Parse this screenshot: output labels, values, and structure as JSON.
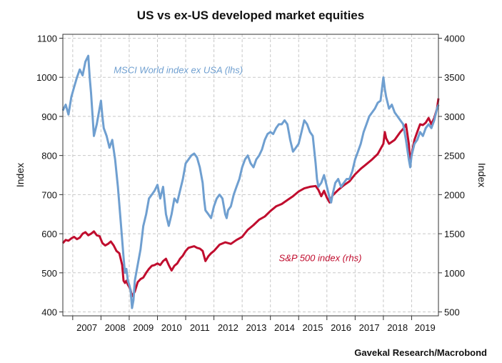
{
  "chart_data": {
    "type": "line",
    "title": "US vs ex-US developed market equities",
    "source": "Gavekal Research/Macrobond",
    "ylabel_left": "Index",
    "ylabel_right": "Index",
    "ylim_left": [
      390,
      1110
    ],
    "ylim_right": [
      450,
      4050
    ],
    "yticks_left": [
      400,
      500,
      600,
      700,
      800,
      900,
      1000,
      1100
    ],
    "yticks_right": [
      500,
      1000,
      1500,
      2000,
      2500,
      3000,
      3500,
      4000
    ],
    "year_labels": [
      "2007",
      "2008",
      "2009",
      "2010",
      "2011",
      "2012",
      "2013",
      "2014",
      "2015",
      "2016",
      "2017",
      "2018",
      "2019"
    ],
    "xlim": [
      2006.65,
      2019.95
    ],
    "grid": true,
    "colors": {
      "msci": "#6f9fd0",
      "sp500": "#c00d2e"
    },
    "series": [
      {
        "name": "MSCI World index ex USA (lhs)",
        "axis": "left",
        "x": [
          2006.65,
          2006.75,
          2006.85,
          2006.95,
          2007.05,
          2007.15,
          2007.25,
          2007.35,
          2007.45,
          2007.55,
          2007.6,
          2007.65,
          2007.75,
          2007.85,
          2007.95,
          2008.0,
          2008.05,
          2008.1,
          2008.2,
          2008.3,
          2008.4,
          2008.5,
          2008.6,
          2008.7,
          2008.8,
          2008.85,
          2008.9,
          2008.95,
          2009.0,
          2009.05,
          2009.1,
          2009.15,
          2009.2,
          2009.3,
          2009.4,
          2009.5,
          2009.6,
          2009.7,
          2009.8,
          2009.9,
          2010.0,
          2010.1,
          2010.2,
          2010.3,
          2010.4,
          2010.5,
          2010.6,
          2010.7,
          2010.8,
          2010.9,
          2011.0,
          2011.1,
          2011.2,
          2011.3,
          2011.4,
          2011.5,
          2011.6,
          2011.65,
          2011.7,
          2011.8,
          2011.9,
          2012.0,
          2012.1,
          2012.2,
          2012.3,
          2012.4,
          2012.45,
          2012.5,
          2012.6,
          2012.7,
          2012.8,
          2012.9,
          2013.0,
          2013.1,
          2013.2,
          2013.3,
          2013.4,
          2013.5,
          2013.6,
          2013.7,
          2013.8,
          2013.9,
          2014.0,
          2014.1,
          2014.2,
          2014.3,
          2014.4,
          2014.5,
          2014.6,
          2014.7,
          2014.8,
          2014.9,
          2015.0,
          2015.1,
          2015.2,
          2015.3,
          2015.4,
          2015.5,
          2015.6,
          2015.65,
          2015.7,
          2015.8,
          2015.9,
          2016.0,
          2016.1,
          2016.15,
          2016.2,
          2016.3,
          2016.4,
          2016.5,
          2016.6,
          2016.7,
          2016.8,
          2016.9,
          2017.0,
          2017.1,
          2017.2,
          2017.3,
          2017.4,
          2017.5,
          2017.6,
          2017.7,
          2017.8,
          2017.9,
          2018.0,
          2018.05,
          2018.1,
          2018.2,
          2018.3,
          2018.4,
          2018.5,
          2018.6,
          2018.7,
          2018.8,
          2018.9,
          2018.95,
          2019.0,
          2019.1,
          2019.2,
          2019.3,
          2019.4,
          2019.5,
          2019.6,
          2019.7,
          2019.8,
          2019.9,
          2019.95
        ],
        "values": [
          915,
          930,
          905,
          950,
          975,
          1000,
          1020,
          1005,
          1040,
          1055,
          1000,
          960,
          850,
          880,
          920,
          940,
          900,
          870,
          850,
          820,
          840,
          790,
          720,
          630,
          540,
          500,
          510,
          480,
          470,
          455,
          410,
          430,
          480,
          520,
          560,
          620,
          650,
          690,
          700,
          710,
          725,
          690,
          720,
          650,
          620,
          650,
          690,
          680,
          710,
          740,
          780,
          790,
          800,
          805,
          795,
          770,
          730,
          690,
          660,
          650,
          640,
          670,
          690,
          700,
          690,
          650,
          640,
          660,
          670,
          700,
          720,
          740,
          770,
          790,
          800,
          780,
          770,
          790,
          800,
          815,
          840,
          855,
          860,
          855,
          870,
          880,
          880,
          890,
          880,
          840,
          810,
          820,
          830,
          860,
          890,
          880,
          860,
          850,
          780,
          740,
          720,
          730,
          750,
          720,
          690,
          680,
          700,
          730,
          740,
          720,
          730,
          740,
          740,
          760,
          790,
          810,
          830,
          860,
          880,
          900,
          910,
          920,
          935,
          940,
          1000,
          970,
          950,
          920,
          930,
          910,
          900,
          890,
          880,
          840,
          790,
          770,
          800,
          830,
          840,
          860,
          850,
          870,
          880,
          870,
          890,
          920,
          930
        ]
      },
      {
        "name": "S&P 500 index (rhs)",
        "axis": "right",
        "x": [
          2006.65,
          2006.75,
          2006.85,
          2006.95,
          2007.05,
          2007.15,
          2007.25,
          2007.35,
          2007.45,
          2007.55,
          2007.65,
          2007.75,
          2007.85,
          2007.95,
          2008.05,
          2008.15,
          2008.25,
          2008.35,
          2008.45,
          2008.55,
          2008.65,
          2008.75,
          2008.8,
          2008.85,
          2008.9,
          2008.95,
          2009.0,
          2009.05,
          2009.1,
          2009.2,
          2009.3,
          2009.4,
          2009.5,
          2009.6,
          2009.7,
          2009.8,
          2009.9,
          2010.0,
          2010.1,
          2010.2,
          2010.3,
          2010.4,
          2010.5,
          2010.6,
          2010.7,
          2010.8,
          2010.9,
          2011.0,
          2011.1,
          2011.2,
          2011.3,
          2011.4,
          2011.5,
          2011.6,
          2011.7,
          2011.8,
          2011.9,
          2012.0,
          2012.2,
          2012.4,
          2012.6,
          2012.8,
          2013.0,
          2013.2,
          2013.4,
          2013.6,
          2013.8,
          2014.0,
          2014.2,
          2014.4,
          2014.6,
          2014.8,
          2015.0,
          2015.2,
          2015.4,
          2015.6,
          2015.7,
          2015.8,
          2015.9,
          2016.0,
          2016.1,
          2016.2,
          2016.4,
          2016.6,
          2016.8,
          2017.0,
          2017.2,
          2017.4,
          2017.6,
          2017.8,
          2018.0,
          2018.05,
          2018.1,
          2018.2,
          2018.4,
          2018.6,
          2018.7,
          2018.8,
          2018.9,
          2018.95,
          2019.0,
          2019.1,
          2019.2,
          2019.3,
          2019.4,
          2019.5,
          2019.6,
          2019.7,
          2019.8,
          2019.9,
          2019.95
        ],
        "values": [
          1380,
          1420,
          1410,
          1440,
          1460,
          1430,
          1450,
          1500,
          1520,
          1480,
          1500,
          1530,
          1480,
          1470,
          1380,
          1350,
          1370,
          1400,
          1350,
          1280,
          1250,
          1100,
          900,
          870,
          900,
          850,
          820,
          780,
          700,
          760,
          880,
          920,
          940,
          1000,
          1050,
          1090,
          1100,
          1120,
          1100,
          1150,
          1180,
          1100,
          1030,
          1090,
          1120,
          1180,
          1220,
          1280,
          1320,
          1330,
          1340,
          1320,
          1310,
          1280,
          1150,
          1210,
          1250,
          1280,
          1360,
          1390,
          1370,
          1420,
          1460,
          1550,
          1610,
          1680,
          1720,
          1790,
          1850,
          1880,
          1930,
          1980,
          2040,
          2080,
          2100,
          2110,
          2060,
          1980,
          2050,
          1960,
          1900,
          1990,
          2060,
          2120,
          2170,
          2260,
          2330,
          2390,
          2450,
          2520,
          2650,
          2800,
          2720,
          2650,
          2700,
          2800,
          2840,
          2900,
          2650,
          2400,
          2520,
          2700,
          2800,
          2900,
          2890,
          2920,
          2980,
          2900,
          2980,
          3100,
          3230
        ]
      }
    ],
    "annotations": [
      {
        "text": "MSCI World index ex USA (lhs)",
        "x": 2008.45,
        "y_left": 1010,
        "color": "#6f9fd0"
      },
      {
        "text": "S&P 500 index (rhs)",
        "x": 2014.3,
        "y_right": 1150,
        "color": "#c00d2e"
      }
    ]
  }
}
